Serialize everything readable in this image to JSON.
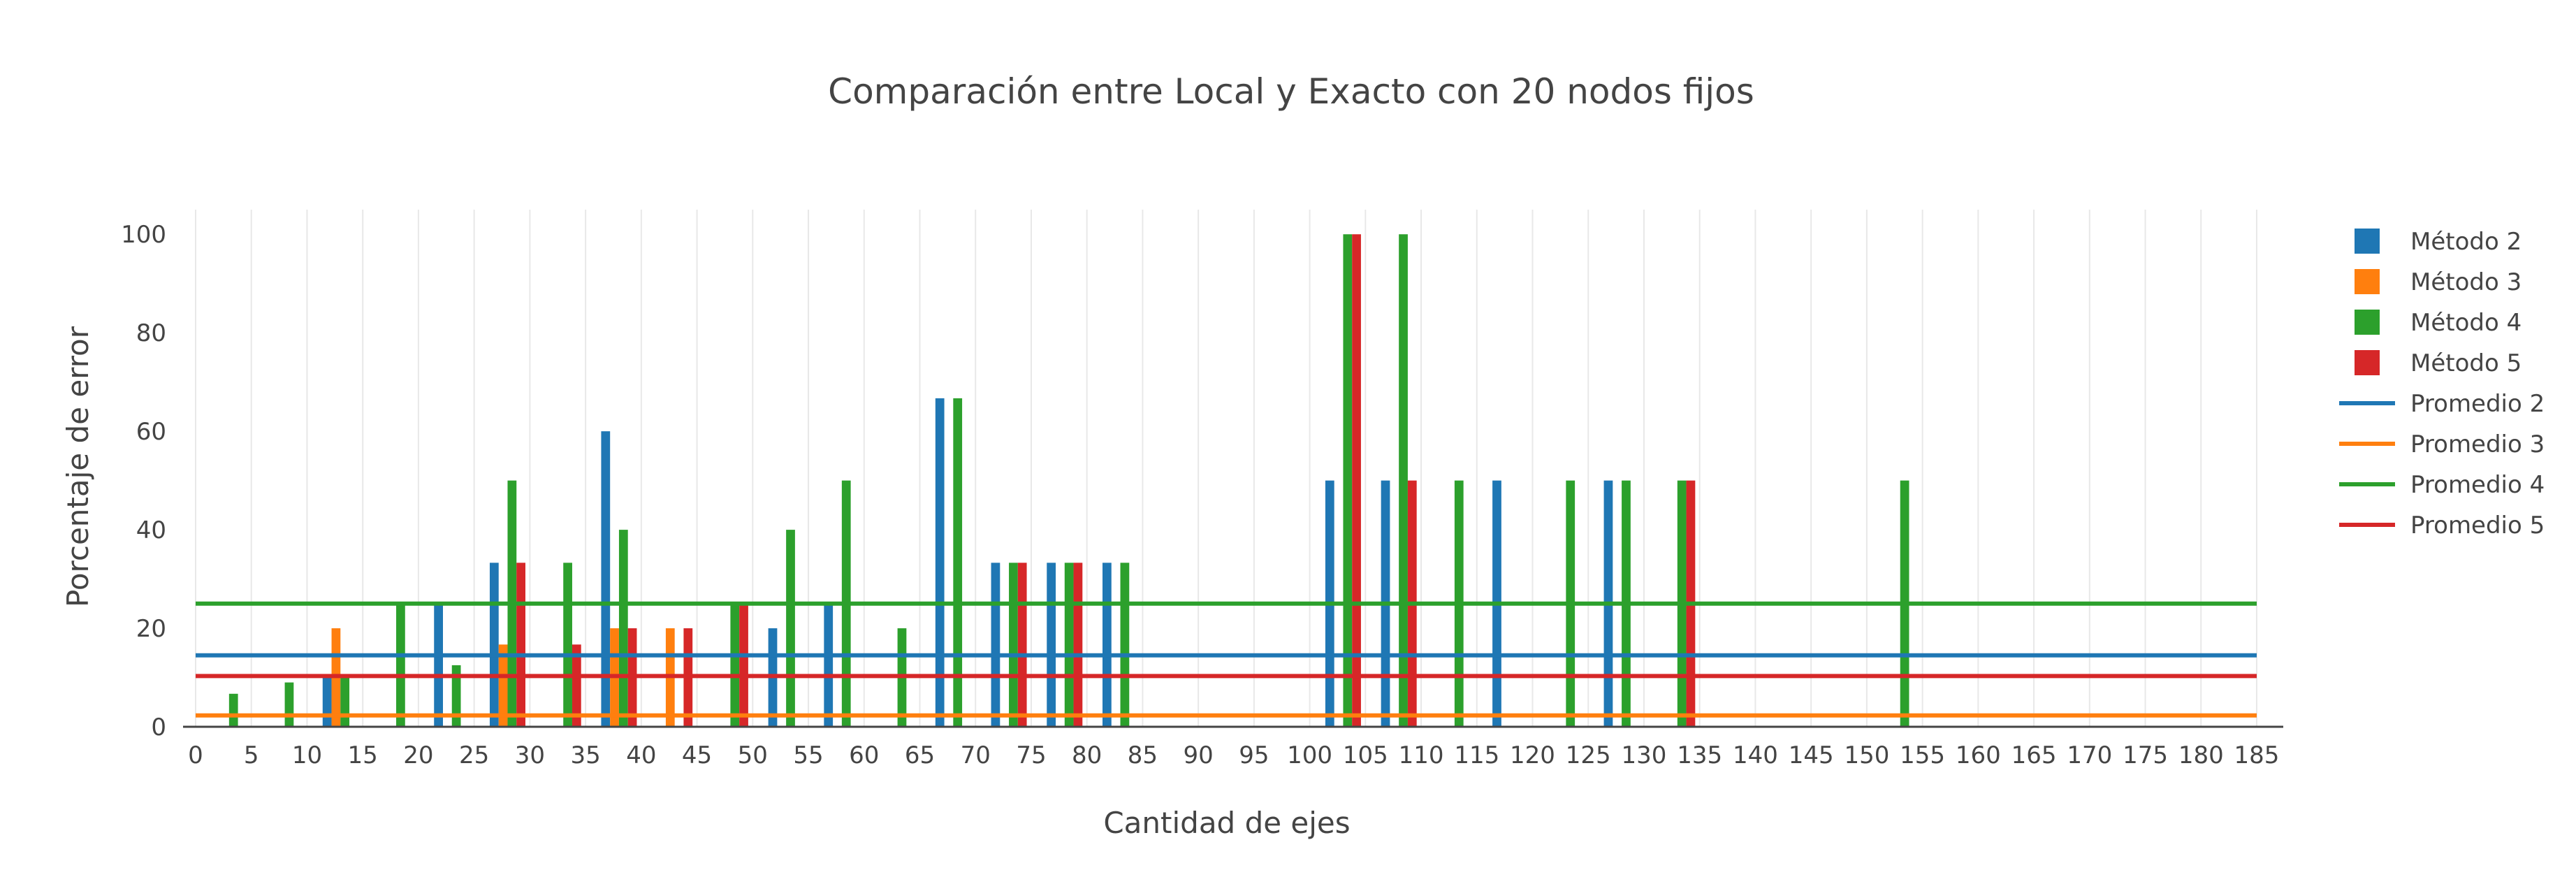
{
  "chart_data": {
    "type": "bar",
    "title": "Comparación entre Local y Exacto con 20 nodos fijos",
    "xlabel": "Cantidad de ejes",
    "ylabel": "Porcentaje de error",
    "xlim": [
      0,
      185
    ],
    "ylim": [
      0,
      105
    ],
    "x_ticks": [
      0,
      5,
      10,
      15,
      20,
      25,
      30,
      35,
      40,
      45,
      50,
      55,
      60,
      65,
      70,
      75,
      80,
      85,
      90,
      95,
      100,
      105,
      110,
      115,
      120,
      125,
      130,
      135,
      140,
      145,
      150,
      155,
      160,
      165,
      170,
      175,
      180,
      185
    ],
    "y_ticks": [
      0,
      20,
      40,
      60,
      80,
      100
    ],
    "grid": "vertical",
    "legend_position": "right",
    "bar_mode": "grouped",
    "series": [
      {
        "name": "Método 2",
        "type": "bar",
        "color": "#1f77b4",
        "x": [
          13,
          23,
          28,
          38,
          53,
          58,
          68,
          73,
          78,
          83,
          103,
          108,
          118,
          128
        ],
        "y": [
          10,
          25,
          33.3,
          60,
          20,
          25,
          66.7,
          33.3,
          33.3,
          33.3,
          50,
          50,
          50,
          50
        ]
      },
      {
        "name": "Método 3",
        "type": "bar",
        "color": "#ff7f0e",
        "x": [
          13,
          28,
          38,
          43
        ],
        "y": [
          20,
          16.7,
          20,
          20
        ]
      },
      {
        "name": "Método 4",
        "type": "bar",
        "color": "#2ca02c",
        "x": [
          3,
          8,
          13,
          18,
          23,
          28,
          33,
          38,
          48,
          53,
          58,
          63,
          68,
          73,
          78,
          83,
          103,
          108,
          113,
          123,
          128,
          133,
          153
        ],
        "y": [
          6.7,
          9,
          10,
          25,
          12.5,
          50,
          33.3,
          40,
          25,
          40,
          50,
          20,
          66.7,
          33.3,
          33.3,
          33.3,
          100,
          100,
          50,
          50,
          50,
          50,
          50
        ]
      },
      {
        "name": "Método 5",
        "type": "bar",
        "color": "#d62728",
        "x": [
          28,
          33,
          38,
          43,
          48,
          73,
          78,
          103,
          108,
          133
        ],
        "y": [
          33.3,
          16.7,
          20,
          20,
          25,
          33.3,
          33.3,
          100,
          50,
          50
        ]
      },
      {
        "name": "Promedio 2",
        "type": "line",
        "color": "#1f77b4",
        "y": 14.5
      },
      {
        "name": "Promedio 3",
        "type": "line",
        "color": "#ff7f0e",
        "y": 2.3
      },
      {
        "name": "Promedio 4",
        "type": "line",
        "color": "#2ca02c",
        "y": 25
      },
      {
        "name": "Promedio 5",
        "type": "line",
        "color": "#d62728",
        "y": 10.3
      }
    ]
  }
}
